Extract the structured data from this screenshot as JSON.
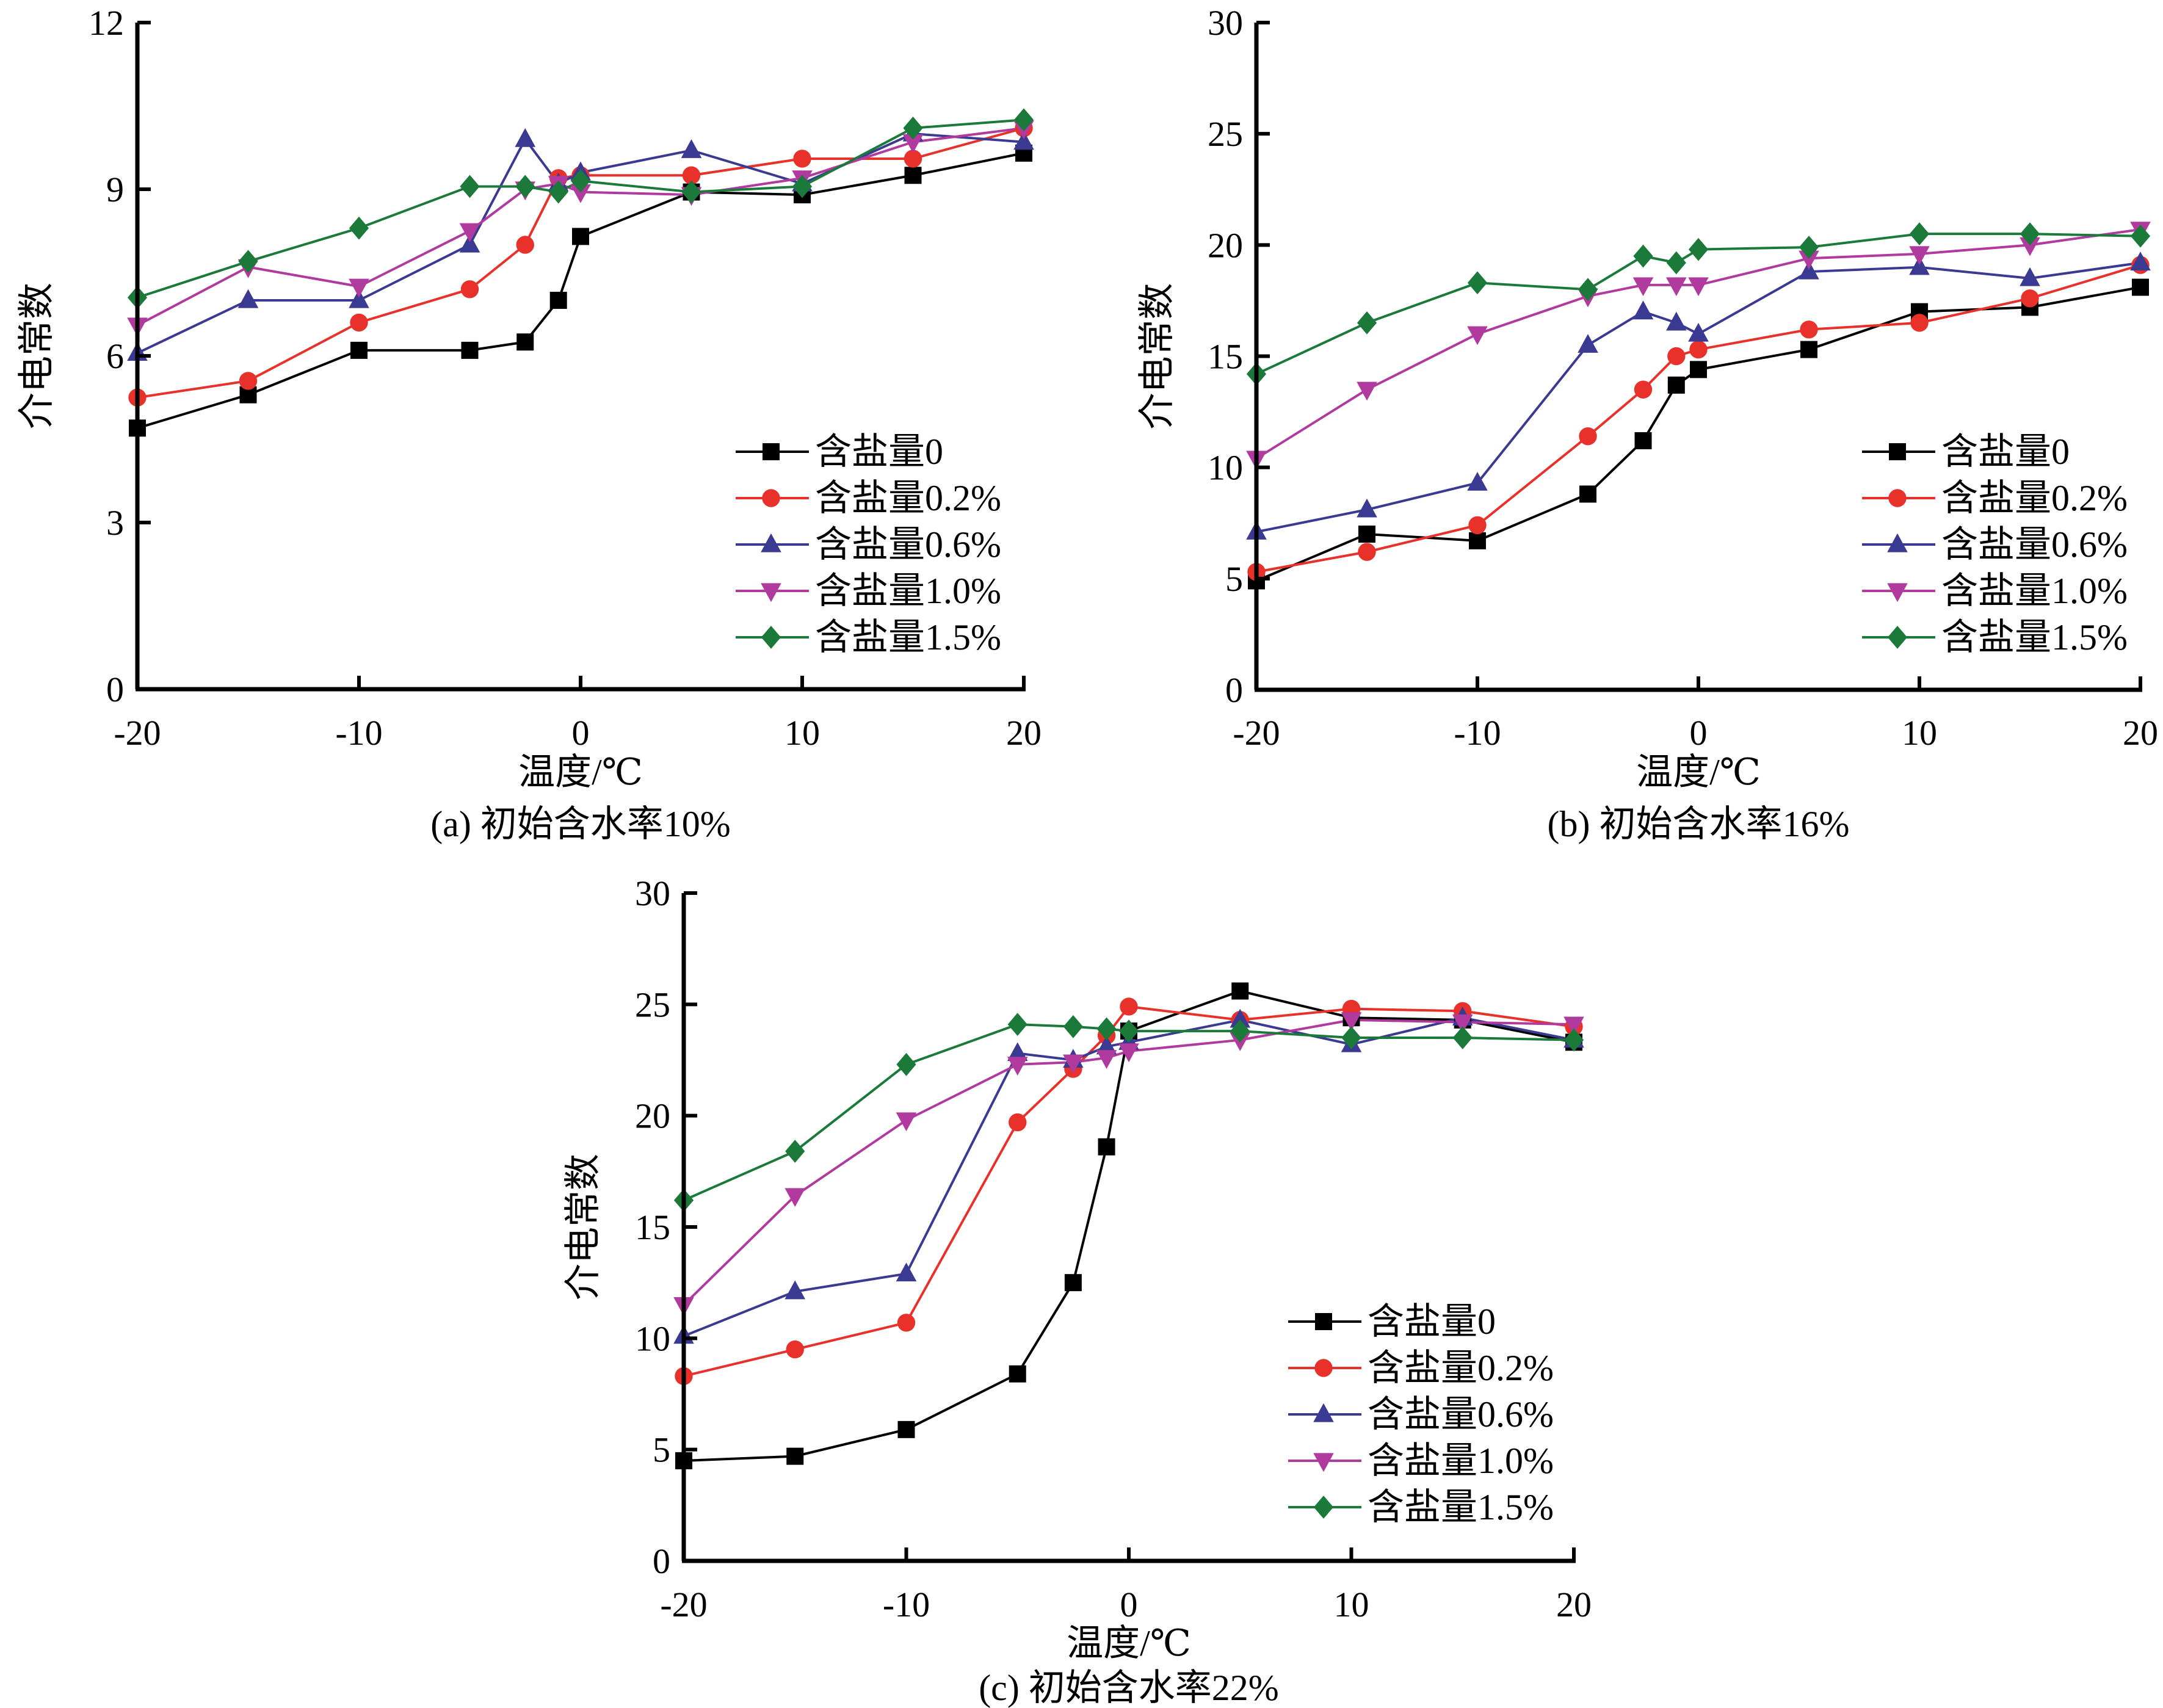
{
  "chart_data": [
    {
      "type": "line",
      "caption": "(a) 初始含水率10%",
      "xlabel": "温度/℃",
      "ylabel": "介电常数",
      "xlim": [
        -20,
        20
      ],
      "ylim": [
        0,
        12
      ],
      "xticks": [
        -20,
        -10,
        0,
        10,
        20
      ],
      "yticks": [
        0,
        3,
        6,
        9,
        12
      ],
      "grid": false,
      "legend_position": "bottom-right",
      "x": [
        -20,
        -15,
        -10,
        -5,
        -2.5,
        -1,
        0,
        5,
        10,
        15,
        20
      ],
      "series": [
        {
          "name": "含盐量0",
          "marker": "square",
          "color": "#000000",
          "values": [
            4.7,
            5.3,
            6.1,
            6.1,
            6.25,
            7.0,
            8.15,
            8.95,
            8.9,
            9.25,
            9.65
          ]
        },
        {
          "name": "含盐量0.2%",
          "marker": "circle",
          "color": "#e8312a",
          "values": [
            5.25,
            5.55,
            6.6,
            7.2,
            8.0,
            9.2,
            9.25,
            9.25,
            9.55,
            9.55,
            10.1
          ]
        },
        {
          "name": "含盐量0.6%",
          "marker": "triangle-up",
          "color": "#3b3a92",
          "values": [
            6.05,
            7.0,
            7.0,
            8.0,
            9.9,
            9.1,
            9.3,
            9.7,
            9.1,
            10.0,
            9.85
          ]
        },
        {
          "name": "含盐量1.0%",
          "marker": "triangle-down",
          "color": "#b03a9e",
          "values": [
            6.55,
            7.6,
            7.25,
            8.25,
            9.0,
            9.1,
            8.95,
            8.9,
            9.2,
            9.85,
            10.1
          ]
        },
        {
          "name": "含盐量1.5%",
          "marker": "diamond",
          "color": "#1b7a3a",
          "values": [
            7.05,
            7.7,
            8.3,
            9.05,
            9.05,
            8.95,
            9.15,
            8.95,
            9.05,
            10.1,
            10.25
          ]
        }
      ]
    },
    {
      "type": "line",
      "caption": "(b) 初始含水率16%",
      "xlabel": "温度/℃",
      "ylabel": "介电常数",
      "xlim": [
        -20,
        20
      ],
      "ylim": [
        0,
        30
      ],
      "xticks": [
        -20,
        -10,
        0,
        10,
        20
      ],
      "yticks": [
        0,
        5,
        10,
        15,
        20,
        25,
        30
      ],
      "grid": false,
      "legend_position": "bottom-right",
      "x": [
        -20,
        -15,
        -10,
        -5,
        -2.5,
        -1,
        0,
        5,
        10,
        15,
        20
      ],
      "series": [
        {
          "name": "含盐量0",
          "marker": "square",
          "color": "#000000",
          "values": [
            4.9,
            7.0,
            6.7,
            8.8,
            11.2,
            13.7,
            14.4,
            15.3,
            17.0,
            17.2,
            18.1
          ]
        },
        {
          "name": "含盐量0.2%",
          "marker": "circle",
          "color": "#e8312a",
          "values": [
            5.3,
            6.2,
            7.4,
            11.4,
            13.5,
            15.0,
            15.3,
            16.2,
            16.5,
            17.6,
            19.1
          ]
        },
        {
          "name": "含盐量0.6%",
          "marker": "triangle-up",
          "color": "#3b3a92",
          "values": [
            7.1,
            8.1,
            9.3,
            15.5,
            17.0,
            16.5,
            16.0,
            18.8,
            19.0,
            18.5,
            19.2
          ]
        },
        {
          "name": "含盐量1.0%",
          "marker": "triangle-down",
          "color": "#b03a9e",
          "values": [
            10.4,
            13.5,
            16.0,
            17.7,
            18.2,
            18.2,
            18.2,
            19.4,
            19.6,
            20.0,
            20.7
          ]
        },
        {
          "name": "含盐量1.5%",
          "marker": "diamond",
          "color": "#1b7a3a",
          "values": [
            14.2,
            16.5,
            18.3,
            18.0,
            19.5,
            19.2,
            19.8,
            19.9,
            20.5,
            20.5,
            20.4
          ]
        }
      ]
    },
    {
      "type": "line",
      "caption": "(c) 初始含水率22%",
      "xlabel": "温度/℃",
      "ylabel": "介电常数",
      "xlim": [
        -20,
        20
      ],
      "ylim": [
        0,
        30
      ],
      "xticks": [
        -20,
        -10,
        0,
        10,
        20
      ],
      "yticks": [
        0,
        5,
        10,
        15,
        20,
        25,
        30
      ],
      "grid": false,
      "legend_position": "bottom-right",
      "x": [
        -20,
        -15,
        -10,
        -5,
        -2.5,
        -1,
        0,
        5,
        10,
        15,
        20
      ],
      "series": [
        {
          "name": "含盐量0",
          "marker": "square",
          "color": "#000000",
          "values": [
            4.5,
            4.7,
            5.9,
            8.4,
            12.5,
            18.6,
            23.8,
            25.6,
            24.4,
            24.3,
            23.3
          ]
        },
        {
          "name": "含盐量0.2%",
          "marker": "circle",
          "color": "#e8312a",
          "values": [
            8.3,
            9.5,
            10.7,
            19.7,
            22.1,
            23.6,
            24.9,
            24.3,
            24.8,
            24.7,
            24.0
          ]
        },
        {
          "name": "含盐量0.6%",
          "marker": "triangle-up",
          "color": "#3b3a92",
          "values": [
            10.1,
            12.1,
            12.9,
            22.8,
            22.5,
            23.1,
            23.3,
            24.3,
            23.2,
            24.4,
            23.4
          ]
        },
        {
          "name": "含盐量1.0%",
          "marker": "triangle-down",
          "color": "#b03a9e",
          "values": [
            11.5,
            16.4,
            19.8,
            22.3,
            22.4,
            22.6,
            22.9,
            23.4,
            24.3,
            24.2,
            24.1
          ]
        },
        {
          "name": "含盐量1.5%",
          "marker": "diamond",
          "color": "#1b7a3a",
          "values": [
            16.2,
            18.4,
            22.3,
            24.1,
            24.0,
            23.9,
            23.8,
            23.8,
            23.5,
            23.5,
            23.4
          ]
        }
      ]
    }
  ]
}
